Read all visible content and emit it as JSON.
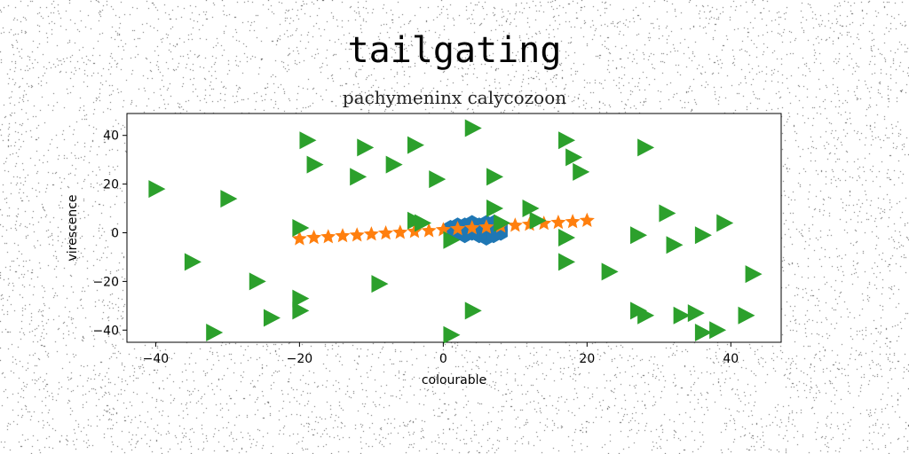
{
  "chart_data": {
    "type": "scatter",
    "title": "tailgating",
    "subtitle": "pachymeninx calycozoon",
    "xlabel": "colourable",
    "ylabel": "virescence",
    "xlim": [
      -44,
      47
    ],
    "ylim": [
      -45,
      49
    ],
    "xticks": [
      -40,
      -20,
      0,
      20,
      40
    ],
    "yticks": [
      -40,
      -20,
      0,
      20,
      40
    ],
    "grid": false,
    "series": [
      {
        "marker": "hexagon",
        "color": "#1f77b4",
        "points": [
          [
            1,
            2
          ],
          [
            2,
            3
          ],
          [
            3,
            1
          ],
          [
            4,
            4
          ],
          [
            4,
            0
          ],
          [
            5,
            3
          ],
          [
            5,
            -1
          ],
          [
            6,
            2
          ],
          [
            6,
            -2
          ],
          [
            7,
            1
          ],
          [
            7,
            4
          ],
          [
            8,
            2
          ],
          [
            3,
            -1
          ],
          [
            2,
            0
          ],
          [
            5,
            1
          ],
          [
            6,
            4
          ],
          [
            4,
            2
          ],
          [
            8,
            0
          ],
          [
            3,
            3
          ],
          [
            6,
            0
          ],
          [
            7,
            -1
          ]
        ]
      },
      {
        "marker": "star",
        "color": "#ff7f0e",
        "points": [
          [
            -20,
            -2.5
          ],
          [
            -18,
            -2
          ],
          [
            -16,
            -1.7
          ],
          [
            -14,
            -1.3
          ],
          [
            -12,
            -1
          ],
          [
            -10,
            -0.6
          ],
          [
            -8,
            -0.2
          ],
          [
            -6,
            0.1
          ],
          [
            -4,
            0.5
          ],
          [
            -2,
            0.8
          ],
          [
            0,
            1.2
          ],
          [
            2,
            1.6
          ],
          [
            4,
            2
          ],
          [
            6,
            2.3
          ],
          [
            8,
            2.7
          ],
          [
            10,
            3
          ],
          [
            12,
            3.4
          ],
          [
            14,
            3.8
          ],
          [
            16,
            4.2
          ],
          [
            18,
            4.5
          ],
          [
            20,
            5
          ]
        ]
      },
      {
        "marker": "triangle-right",
        "color": "#2ca02c",
        "points": [
          [
            -40,
            18
          ],
          [
            -30,
            14
          ],
          [
            -35,
            -12
          ],
          [
            -32,
            -41
          ],
          [
            -26,
            -20
          ],
          [
            -24,
            -35
          ],
          [
            -20,
            -27
          ],
          [
            -20,
            -32
          ],
          [
            -20,
            2
          ],
          [
            -19,
            38
          ],
          [
            -18,
            28
          ],
          [
            -12,
            23
          ],
          [
            -11,
            35
          ],
          [
            -7,
            28
          ],
          [
            -9,
            -21
          ],
          [
            -4,
            36
          ],
          [
            -4,
            5
          ],
          [
            -3,
            4
          ],
          [
            -1,
            22
          ],
          [
            1,
            -3
          ],
          [
            1,
            -42
          ],
          [
            4,
            43
          ],
          [
            4,
            -32
          ],
          [
            7,
            23
          ],
          [
            7,
            10
          ],
          [
            8,
            4
          ],
          [
            12,
            10
          ],
          [
            13,
            5
          ],
          [
            17,
            38
          ],
          [
            18,
            31
          ],
          [
            19,
            25
          ],
          [
            17,
            -2
          ],
          [
            17,
            -12
          ],
          [
            23,
            -16
          ],
          [
            27,
            -1
          ],
          [
            28,
            35
          ],
          [
            31,
            8
          ],
          [
            32,
            -5
          ],
          [
            36,
            -1
          ],
          [
            39,
            4
          ],
          [
            43,
            -17
          ],
          [
            27,
            -32
          ],
          [
            28,
            -34
          ],
          [
            33,
            -34
          ],
          [
            35,
            -33
          ],
          [
            36,
            -41
          ],
          [
            38,
            -40
          ],
          [
            42,
            -34
          ]
        ]
      }
    ]
  }
}
